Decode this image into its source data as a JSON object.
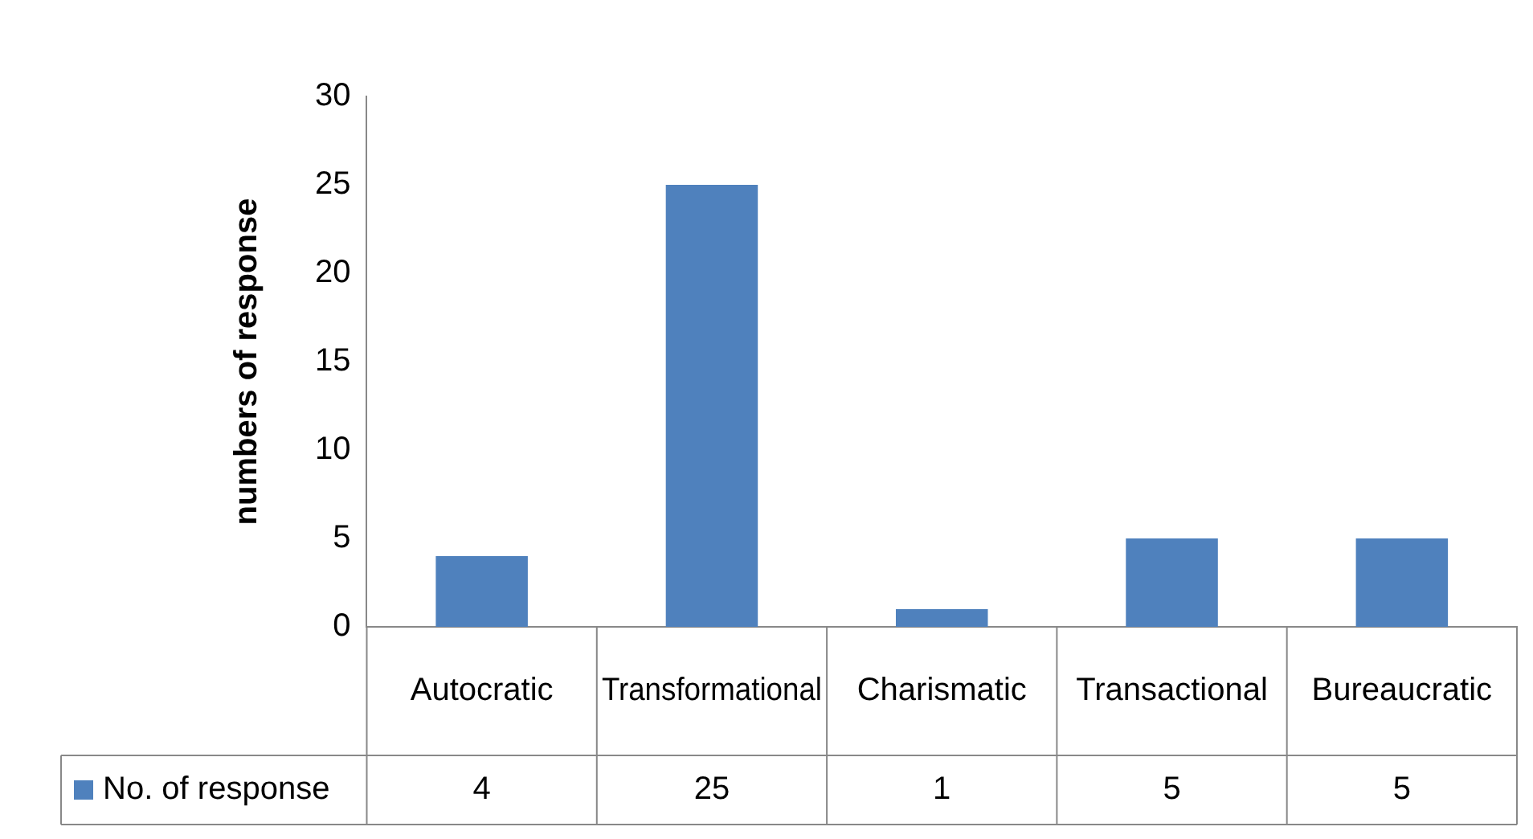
{
  "chart_data": {
    "type": "bar",
    "ylabel": "numbers of response",
    "categories": [
      "Autocratic",
      "Transformational",
      "Charismatic",
      "Transactional",
      "Bureaucratic"
    ],
    "series": [
      {
        "name": "No. of response",
        "color": "#4f81bd",
        "values": [
          4,
          25,
          1,
          5,
          5
        ]
      }
    ],
    "ylim": [
      0,
      30
    ],
    "yticks": [
      0,
      5,
      10,
      15,
      20,
      25,
      30
    ],
    "grid": false,
    "legend": "bottom",
    "data_labels": true
  }
}
